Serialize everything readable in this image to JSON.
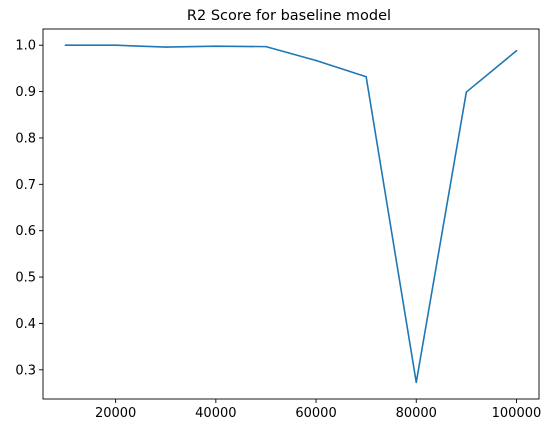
{
  "chart_data": {
    "type": "line",
    "title": "R2 Score for baseline model",
    "xlabel": "",
    "ylabel": "",
    "x": [
      10000,
      20000,
      30000,
      40000,
      50000,
      60000,
      70000,
      80000,
      90000,
      100000
    ],
    "series": [
      {
        "values": [
          1.0,
          1.0,
          0.996,
          0.998,
          0.997,
          0.967,
          0.932,
          0.273,
          0.899,
          0.988
        ],
        "color": "#1f77b4"
      }
    ],
    "xlim": [
      5500,
      104500
    ],
    "ylim": [
      0.237,
      1.035
    ],
    "xticks": [
      20000,
      40000,
      60000,
      80000,
      100000
    ],
    "xtick_labels": [
      "20000",
      "40000",
      "60000",
      "80000",
      "100000"
    ],
    "yticks": [
      0.3,
      0.4,
      0.5,
      0.6,
      0.7,
      0.8,
      0.9,
      1.0
    ],
    "ytick_labels": [
      "0.3",
      "0.4",
      "0.5",
      "0.6",
      "0.7",
      "0.8",
      "0.9",
      "1.0"
    ],
    "grid": false,
    "legend": "none"
  }
}
